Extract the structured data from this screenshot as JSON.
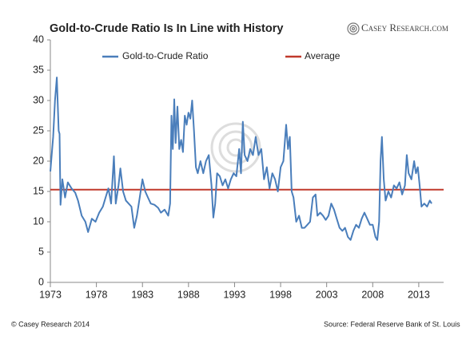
{
  "chart_data": {
    "type": "line",
    "title": "Gold-to-Crude Ratio Is In Line with History",
    "logo": "Casey Research.com",
    "footer_left": "© Casey Research 2014",
    "footer_right": "Source:  Federal Reserve Bank of St. Louis",
    "xlim": [
      1973,
      2015.7
    ],
    "xticks": [
      1973,
      1978,
      1983,
      1988,
      1993,
      1998,
      2003,
      2008,
      2013
    ],
    "ylim": [
      0,
      40
    ],
    "yticks": [
      0,
      5,
      10,
      15,
      20,
      25,
      30,
      35,
      40
    ],
    "grid": false,
    "legend": "top",
    "series": [
      {
        "name": "Gold-to-Crude Ratio",
        "color": "#4a7ebb",
        "x": [
          1973.0,
          1973.3,
          1973.5,
          1973.7,
          1973.9,
          1974.0,
          1974.1,
          1974.3,
          1974.6,
          1974.9,
          1975.3,
          1975.7,
          1976.0,
          1976.4,
          1976.8,
          1977.1,
          1977.5,
          1977.9,
          1978.3,
          1978.7,
          1979.0,
          1979.3,
          1979.6,
          1979.9,
          1980.1,
          1980.4,
          1980.6,
          1980.9,
          1981.2,
          1981.5,
          1981.8,
          1982.1,
          1982.4,
          1982.7,
          1983.0,
          1983.3,
          1983.6,
          1983.9,
          1984.3,
          1984.7,
          1985.0,
          1985.4,
          1985.8,
          1986.0,
          1986.15,
          1986.3,
          1986.45,
          1986.6,
          1986.8,
          1987.0,
          1987.2,
          1987.4,
          1987.6,
          1987.8,
          1988.0,
          1988.2,
          1988.4,
          1988.6,
          1988.8,
          1989.0,
          1989.3,
          1989.6,
          1989.9,
          1990.2,
          1990.5,
          1990.7,
          1990.9,
          1991.1,
          1991.4,
          1991.7,
          1992.0,
          1992.3,
          1992.6,
          1992.9,
          1993.2,
          1993.5,
          1993.7,
          1993.9,
          1994.1,
          1994.4,
          1994.7,
          1995.0,
          1995.3,
          1995.6,
          1995.9,
          1996.2,
          1996.5,
          1996.8,
          1997.1,
          1997.4,
          1997.7,
          1998.0,
          1998.3,
          1998.6,
          1998.8,
          1999.0,
          1999.2,
          1999.4,
          1999.7,
          2000.0,
          2000.3,
          2000.6,
          2000.9,
          2001.2,
          2001.5,
          2001.8,
          2002.0,
          2002.3,
          2002.6,
          2002.9,
          2003.2,
          2003.5,
          2003.8,
          2004.1,
          2004.4,
          2004.7,
          2005.0,
          2005.3,
          2005.6,
          2005.9,
          2006.2,
          2006.5,
          2006.8,
          2007.1,
          2007.4,
          2007.7,
          2008.0,
          2008.3,
          2008.5,
          2008.7,
          2008.85,
          2009.0,
          2009.2,
          2009.4,
          2009.7,
          2010.0,
          2010.3,
          2010.6,
          2010.9,
          2011.2,
          2011.5,
          2011.7,
          2011.9,
          2012.2,
          2012.5,
          2012.7,
          2012.9,
          2013.1,
          2013.3,
          2013.6,
          2013.9,
          2014.2,
          2014.4
        ],
        "values": [
          18.3,
          24,
          30,
          33.8,
          25,
          24.5,
          12.8,
          17,
          14,
          16.5,
          15.5,
          14.8,
          13.5,
          11,
          10,
          8.3,
          10.5,
          10,
          11.5,
          12.5,
          14,
          15.5,
          13,
          20.8,
          13,
          16,
          18.8,
          15,
          13.5,
          13,
          12.5,
          9,
          11,
          14,
          17,
          15,
          14,
          13,
          12.8,
          12.3,
          11.5,
          12,
          11,
          13,
          27.5,
          22,
          30.2,
          23,
          29,
          22,
          23.5,
          21.5,
          27.5,
          26,
          28,
          27,
          30,
          25,
          19,
          18,
          20,
          18,
          20,
          21,
          16,
          10.7,
          13,
          18,
          17.5,
          16,
          17,
          15.5,
          17,
          18,
          17.5,
          22,
          18,
          26.5,
          21,
          20,
          22,
          21,
          24,
          21,
          22,
          17,
          19,
          15.5,
          18,
          17,
          15,
          19,
          20,
          26,
          22,
          24,
          15,
          14,
          10,
          11,
          9,
          9,
          9.5,
          10,
          14,
          14.5,
          11,
          11.5,
          11,
          10.3,
          11,
          13,
          12,
          10.5,
          9,
          8.5,
          9,
          7.5,
          7,
          8.5,
          9.5,
          9,
          10.5,
          11.5,
          10.5,
          9.5,
          9.5,
          7.5,
          7,
          10,
          20,
          24,
          17,
          13.5,
          15,
          14,
          16,
          15.5,
          16.5,
          14.5,
          16,
          21,
          18,
          17,
          20,
          18,
          19,
          16,
          12.5,
          13,
          12.5,
          13.5,
          13
        ]
      }
    ],
    "reference_line": {
      "name": "Average",
      "value": 15.3,
      "color": "#c0392b"
    }
  }
}
